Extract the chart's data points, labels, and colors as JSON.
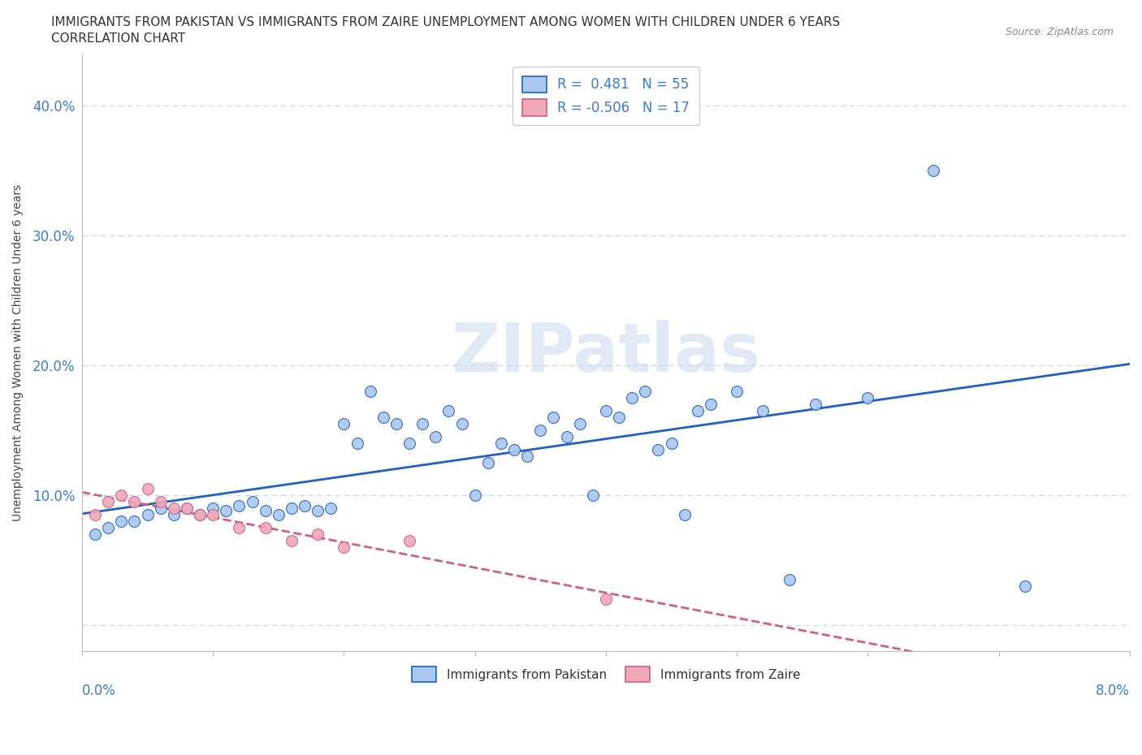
{
  "title_line1": "IMMIGRANTS FROM PAKISTAN VS IMMIGRANTS FROM ZAIRE UNEMPLOYMENT AMONG WOMEN WITH CHILDREN UNDER 6 YEARS",
  "title_line2": "CORRELATION CHART",
  "source": "Source: ZipAtlas.com",
  "ylabel": "Unemployment Among Women with Children Under 6 years",
  "legend1_label": "Immigrants from Pakistan",
  "legend2_label": "Immigrants from Zaire",
  "r1": "0.481",
  "n1": "55",
  "r2": "-0.506",
  "n2": "17",
  "color_pakistan": "#a8c8f0",
  "color_zaire": "#f0a8b8",
  "color_trendline_pakistan": "#2060c0",
  "color_trendline_zaire": "#d06080",
  "watermark_text": "ZIPatlas",
  "pakistan_x": [
    0.001,
    0.002,
    0.003,
    0.004,
    0.005,
    0.006,
    0.007,
    0.008,
    0.009,
    0.01,
    0.011,
    0.012,
    0.013,
    0.014,
    0.015,
    0.016,
    0.017,
    0.018,
    0.019,
    0.02,
    0.021,
    0.022,
    0.023,
    0.024,
    0.025,
    0.026,
    0.027,
    0.028,
    0.029,
    0.03,
    0.031,
    0.032,
    0.033,
    0.034,
    0.035,
    0.036,
    0.037,
    0.038,
    0.039,
    0.04,
    0.041,
    0.042,
    0.043,
    0.044,
    0.045,
    0.046,
    0.047,
    0.048,
    0.05,
    0.052,
    0.054,
    0.056,
    0.06,
    0.065,
    0.072
  ],
  "pakistan_y": [
    0.07,
    0.075,
    0.08,
    0.08,
    0.085,
    0.09,
    0.085,
    0.09,
    0.085,
    0.09,
    0.088,
    0.092,
    0.095,
    0.088,
    0.085,
    0.09,
    0.092,
    0.088,
    0.09,
    0.155,
    0.14,
    0.18,
    0.16,
    0.155,
    0.14,
    0.155,
    0.145,
    0.165,
    0.155,
    0.1,
    0.125,
    0.14,
    0.135,
    0.13,
    0.15,
    0.16,
    0.145,
    0.155,
    0.1,
    0.165,
    0.16,
    0.175,
    0.18,
    0.135,
    0.14,
    0.085,
    0.165,
    0.17,
    0.18,
    0.165,
    0.035,
    0.17,
    0.175,
    0.35,
    0.03
  ],
  "zaire_x": [
    0.001,
    0.002,
    0.003,
    0.004,
    0.005,
    0.006,
    0.007,
    0.008,
    0.009,
    0.01,
    0.012,
    0.014,
    0.016,
    0.018,
    0.02,
    0.025,
    0.04
  ],
  "zaire_y": [
    0.085,
    0.095,
    0.1,
    0.095,
    0.105,
    0.095,
    0.09,
    0.09,
    0.085,
    0.085,
    0.075,
    0.075,
    0.065,
    0.07,
    0.06,
    0.065,
    0.02
  ],
  "xlim": [
    0.0,
    0.08
  ],
  "ylim": [
    -0.02,
    0.44
  ],
  "yticks": [
    0.0,
    0.1,
    0.2,
    0.3,
    0.4
  ],
  "ytick_labels": [
    "",
    "10.0%",
    "20.0%",
    "30.0%",
    "40.0%"
  ],
  "xticks": [
    0.0,
    0.01,
    0.02,
    0.03,
    0.04,
    0.05,
    0.06,
    0.07,
    0.08
  ],
  "background_color": "#ffffff",
  "grid_color": "#c8d4e8"
}
